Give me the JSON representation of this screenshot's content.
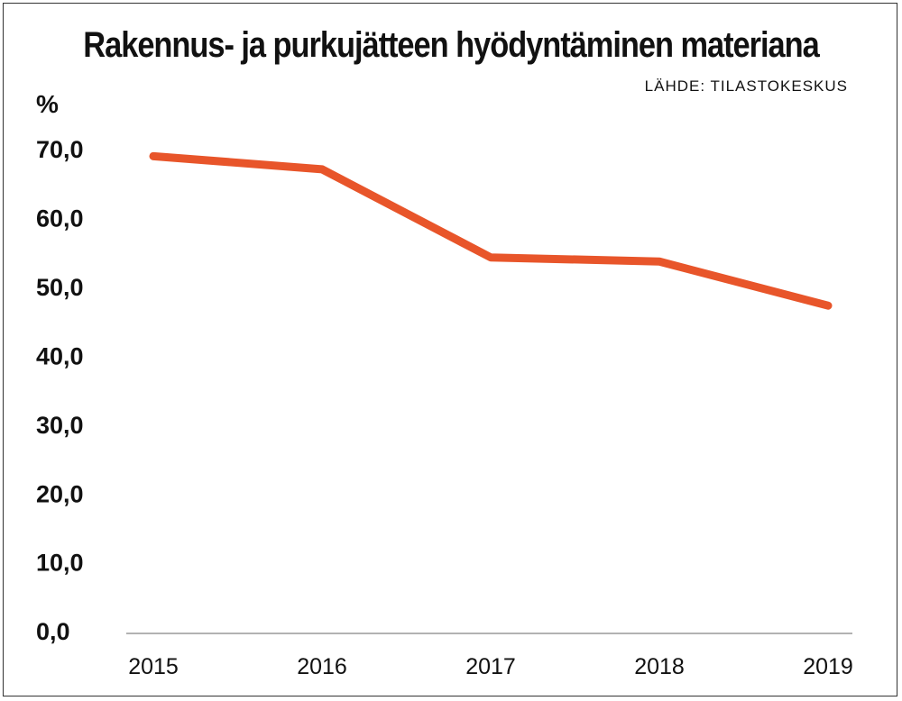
{
  "chart_data": {
    "type": "line",
    "title": "Rakennus- ja purkujätteen hyödyntäminen materiana",
    "source": "LÄHDE: TILASTOKESKUS",
    "ylabel": "%",
    "xlabel": "",
    "categories": [
      "2015",
      "2016",
      "2017",
      "2018",
      "2019"
    ],
    "series": [
      {
        "values": [
          69.3,
          67.4,
          54.6,
          54.0,
          47.6
        ]
      }
    ],
    "ylim": [
      0,
      70
    ],
    "yticks": [
      0,
      10,
      20,
      30,
      40,
      50,
      60,
      70
    ],
    "ytick_labels": [
      "0,0",
      "10,0",
      "20,0",
      "30,0",
      "40,0",
      "50,0",
      "60,0",
      "70,0"
    ],
    "grid": false,
    "legend": "none",
    "colors": {
      "line": "#e8552a",
      "axis": "#999999",
      "text": "#111111"
    }
  }
}
